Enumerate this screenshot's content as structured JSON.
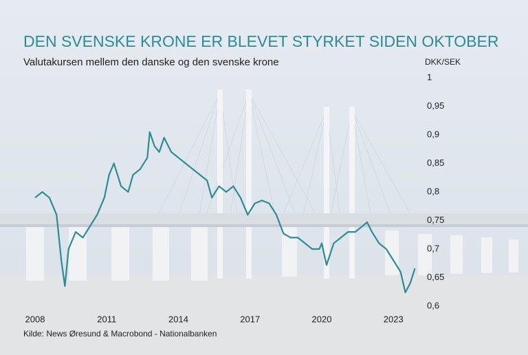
{
  "chart_data": {
    "type": "line",
    "title": "DEN SVENSKE KRONE ER BLEVET STYRKET SIDEN OKTOBER",
    "subtitle": "Valutakursen mellem den danske og den svenske krone",
    "y_label": "DKK/SEK",
    "source": "Kilde: News Øresund & Macrobond - Nationalbanken",
    "color": "#2b8c96",
    "x": [
      2008.0,
      2008.3,
      2008.6,
      2008.9,
      2009.1,
      2009.25,
      2009.4,
      2009.7,
      2010.0,
      2010.3,
      2010.6,
      2010.9,
      2011.1,
      2011.3,
      2011.6,
      2011.9,
      2012.1,
      2012.4,
      2012.7,
      2012.8,
      2013.0,
      2013.2,
      2013.4,
      2013.7,
      2014.0,
      2014.3,
      2014.6,
      2014.9,
      2015.2,
      2015.4,
      2015.7,
      2016.0,
      2016.3,
      2016.6,
      2016.9,
      2017.2,
      2017.5,
      2017.8,
      2018.1,
      2018.4,
      2018.7,
      2019.0,
      2019.3,
      2019.6,
      2019.9,
      2020.0,
      2020.2,
      2020.5,
      2020.8,
      2021.1,
      2021.4,
      2021.7,
      2021.9,
      2022.1,
      2022.4,
      2022.7,
      2023.0,
      2023.3,
      2023.5,
      2023.7,
      2023.9
    ],
    "values": [
      0.79,
      0.8,
      0.79,
      0.76,
      0.68,
      0.635,
      0.7,
      0.73,
      0.72,
      0.74,
      0.76,
      0.79,
      0.83,
      0.85,
      0.81,
      0.8,
      0.83,
      0.84,
      0.86,
      0.905,
      0.88,
      0.87,
      0.895,
      0.87,
      0.86,
      0.85,
      0.84,
      0.83,
      0.82,
      0.79,
      0.81,
      0.8,
      0.81,
      0.79,
      0.76,
      0.78,
      0.785,
      0.78,
      0.76,
      0.727,
      0.72,
      0.72,
      0.71,
      0.7,
      0.7,
      0.71,
      0.672,
      0.71,
      0.72,
      0.73,
      0.73,
      0.74,
      0.747,
      0.73,
      0.71,
      0.7,
      0.68,
      0.66,
      0.624,
      0.64,
      0.666
    ],
    "xlim": [
      2008,
      2024
    ],
    "xticks": [
      2008,
      2011,
      2014,
      2017,
      2020,
      2023
    ],
    "ylim": [
      0.6,
      1
    ],
    "yticks": [
      {
        "value": 0.6,
        "label": "0,6"
      },
      {
        "value": 0.65,
        "label": "0,65"
      },
      {
        "value": 0.7,
        "label": "0,7"
      },
      {
        "value": 0.75,
        "label": "0,75"
      },
      {
        "value": 0.8,
        "label": "0,8"
      },
      {
        "value": 0.85,
        "label": "0,85"
      },
      {
        "value": 0.9,
        "label": "0,9"
      },
      {
        "value": 0.95,
        "label": "0,95"
      },
      1
    ],
    "grid": false
  }
}
